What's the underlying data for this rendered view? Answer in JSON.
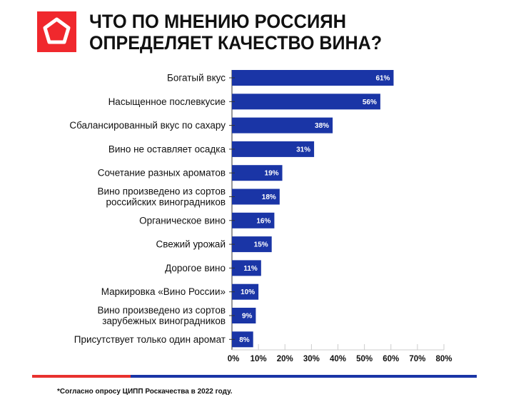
{
  "chart_data": {
    "type": "bar",
    "orientation": "horizontal",
    "title": [
      "ЧТО ПО МНЕНИЮ РОССИЯН",
      "ОПРЕДЕЛЯЕТ КАЧЕСТВО ВИНА?"
    ],
    "categories": [
      [
        "Богатый вкус"
      ],
      [
        "Насыщенное послевкусие"
      ],
      [
        "Сбалансированный вкус по сахару"
      ],
      [
        "Вино не оставляет осадка"
      ],
      [
        "Сочетание разных ароматов"
      ],
      [
        "Вино произведено из сортов",
        "российских виноградников"
      ],
      [
        "Органическое вино"
      ],
      [
        "Свежий урожай"
      ],
      [
        "Дорогое вино"
      ],
      [
        "Маркировка «Вино России»"
      ],
      [
        "Вино произведено из сортов",
        "зарубежных виноградников"
      ],
      [
        "Присутствует только один аромат"
      ]
    ],
    "values": [
      61,
      56,
      38,
      31,
      19,
      18,
      16,
      15,
      11,
      10,
      9,
      8
    ],
    "value_labels": [
      "61%",
      "56%",
      "38%",
      "31%",
      "19%",
      "18%",
      "16%",
      "15%",
      "11%",
      "10%",
      "9%",
      "8%"
    ],
    "xlim": [
      0,
      80
    ],
    "x_ticks": [
      "0%",
      "10%",
      "20%",
      "30%",
      "40%",
      "50%",
      "60%",
      "70%",
      "80%"
    ],
    "grid": false,
    "footnote": "*Согласно опросу ЦИПП Роскачества в 2022 году.",
    "colors": {
      "bar": "#1a35a6",
      "logo": "#f0282d",
      "line_red": "#e8322f",
      "line_blue": "#1a35a6"
    }
  }
}
